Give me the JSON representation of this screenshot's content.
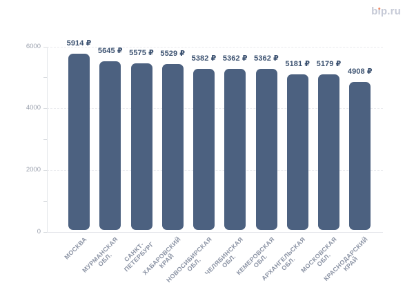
{
  "logo": {
    "text": "bip.ru",
    "part_b": "b",
    "part_i": "ı",
    "part_rest": "p.ru",
    "text_color": "#c5c9d6",
    "dot_color": "#ef8a64"
  },
  "chart_data": {
    "type": "bar",
    "title": "",
    "xlabel": "",
    "ylabel": "",
    "unit": "₽",
    "categories": [
      "МОСКВА",
      "МУРМАНСКАЯ ОБЛ.",
      "САНКТ-ПЕТЕРБУРГ",
      "ХАБАРОВСКИЙ КРАЙ",
      "НОВОСИБИРСКАЯ ОБЛ.",
      "ЧЕЛЯБИНСКАЯ ОБЛ.",
      "КЕМЕРОВСКАЯ ОБЛ.",
      "АРХАНГЕЛЬСКАЯ ОБЛ.",
      "МОСКОВСКАЯ ОБЛ.",
      "КРАСНОДАРСКИЙ КРАЙ"
    ],
    "category_lines": [
      [
        "МОСКВА"
      ],
      [
        "МУРМАНСКАЯ",
        "ОБЛ."
      ],
      [
        "САНКТ-",
        "ПЕТЕРБУРГ"
      ],
      [
        "ХАБАРОВСКИЙ",
        "КРАЙ"
      ],
      [
        "НОВОСИБИРСКАЯ",
        "ОБЛ."
      ],
      [
        "ЧЕЛЯБИНСКАЯ",
        "ОБЛ."
      ],
      [
        "КЕМЕРОВСКАЯ",
        "ОБЛ."
      ],
      [
        "АРХАНГЕЛЬСКАЯ",
        "ОБЛ."
      ],
      [
        "МОСКОВСКАЯ",
        "ОБЛ."
      ],
      [
        "КРАСНОДАРСКИЙ",
        "КРАЙ"
      ]
    ],
    "values": [
      5914,
      5645,
      5575,
      5529,
      5382,
      5362,
      5362,
      5181,
      5179,
      4908
    ],
    "value_labels": [
      "5914 ₽",
      "5645 ₽",
      "5575 ₽",
      "5529 ₽",
      "5382 ₽",
      "5362 ₽",
      "5362 ₽",
      "5181 ₽",
      "5179 ₽",
      "4908 ₽"
    ],
    "ylim": [
      0,
      6000
    ],
    "y_ticks": [
      0,
      2000,
      4000,
      6000
    ],
    "y_tick_labels": [
      "0",
      "2000",
      "4000",
      "6000"
    ],
    "y_minor_ticks": [
      1000,
      3000,
      5000
    ],
    "grid": "horizontal-dashed",
    "legend": "none",
    "bar_color": "#4c6180",
    "value_label_color": "#3a506f",
    "x_label_color": "#8b93a4",
    "y_label_color": "#9aa0ad"
  }
}
